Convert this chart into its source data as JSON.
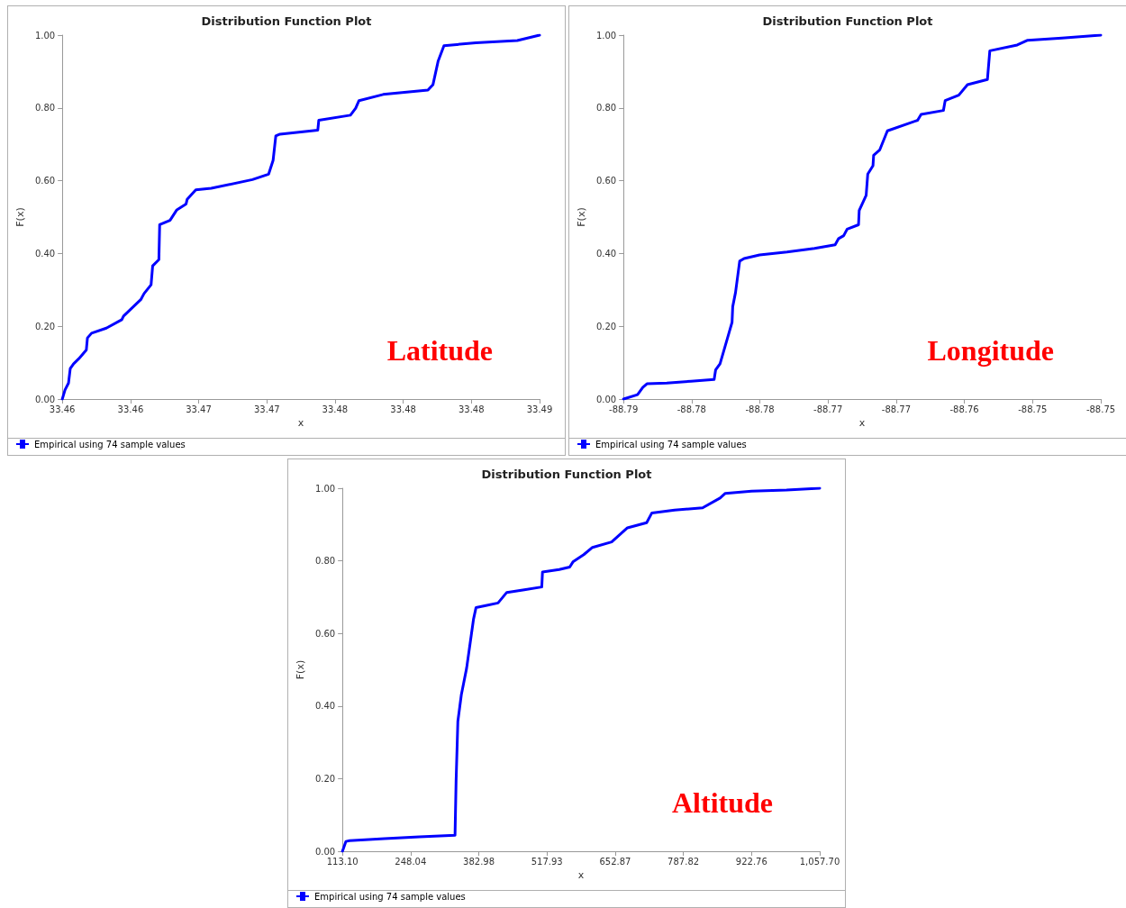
{
  "chart_data": [
    {
      "type": "line",
      "title": "Distribution Function Plot",
      "xlabel": "x",
      "ylabel": "F(x)",
      "annotations": [
        "Latitude"
      ],
      "legend": "bottom left",
      "xlim": [
        33.458,
        33.488
      ],
      "xticks": [
        {
          "value": 33.458,
          "label": "33.46"
        },
        {
          "value": 33.46229,
          "label": "33.46"
        },
        {
          "value": 33.46657,
          "label": "33.47"
        },
        {
          "value": 33.47086,
          "label": "33.47"
        },
        {
          "value": 33.47514,
          "label": "33.48"
        },
        {
          "value": 33.47943,
          "label": "33.48"
        },
        {
          "value": 33.48371,
          "label": "33.48"
        },
        {
          "value": 33.488,
          "label": "33.49"
        }
      ],
      "ylim": [
        0,
        1
      ],
      "yticks": [
        {
          "value": 0,
          "label": "0.00"
        },
        {
          "value": 0.2,
          "label": "0.20"
        },
        {
          "value": 0.4,
          "label": "0.40"
        },
        {
          "value": 0.6,
          "label": "0.60"
        },
        {
          "value": 0.8,
          "label": "0.80"
        },
        {
          "value": 1,
          "label": "1.00"
        }
      ],
      "series": [
        {
          "name": "Empirical using 74 sample values",
          "color": "#0000ff",
          "x": [
            33.458,
            33.45817,
            33.45839,
            33.4585,
            33.45871,
            33.45904,
            33.45951,
            33.45958,
            33.45984,
            33.46077,
            33.46174,
            33.46185,
            33.46293,
            33.46314,
            33.46358,
            33.46368,
            33.46407,
            33.46412,
            33.46477,
            33.4652,
            33.46578,
            33.46585,
            33.46639,
            33.46736,
            33.46995,
            33.47097,
            33.47125,
            33.47142,
            33.47168,
            33.47406,
            33.47412,
            33.47611,
            33.47644,
            33.47665,
            33.47817,
            33.48098,
            33.4813,
            33.48162,
            33.48199,
            33.484,
            33.4866,
            33.488
          ],
          "values": [
            0,
            0.025,
            0.044,
            0.084,
            0.097,
            0.111,
            0.135,
            0.168,
            0.181,
            0.195,
            0.218,
            0.228,
            0.273,
            0.29,
            0.314,
            0.366,
            0.383,
            0.479,
            0.491,
            0.52,
            0.536,
            0.549,
            0.575,
            0.579,
            0.603,
            0.618,
            0.656,
            0.723,
            0.728,
            0.739,
            0.766,
            0.78,
            0.799,
            0.82,
            0.837,
            0.849,
            0.864,
            0.928,
            0.971,
            0.979,
            0.985,
            1.0
          ]
        }
      ]
    },
    {
      "type": "line",
      "title": "Distribution Function Plot",
      "xlabel": "x",
      "ylabel": "F(x)",
      "annotations": [
        "Longitude"
      ],
      "legend": "bottom left",
      "xlim": [
        -88.7855,
        -88.7498
      ],
      "xticks": [
        {
          "value": -88.7855,
          "label": "-88.79"
        },
        {
          "value": -88.7804,
          "label": "-88.78"
        },
        {
          "value": -88.7753,
          "label": "-88.78"
        },
        {
          "value": -88.7702,
          "label": "-88.77"
        },
        {
          "value": -88.7651,
          "label": "-88.77"
        },
        {
          "value": -88.76,
          "label": "-88.76"
        },
        {
          "value": -88.7549,
          "label": "-88.75"
        },
        {
          "value": -88.7498,
          "label": "-88.75"
        }
      ],
      "ylim": [
        0,
        1
      ],
      "yticks": [
        {
          "value": 0,
          "label": "0.00"
        },
        {
          "value": 0.2,
          "label": "0.20"
        },
        {
          "value": 0.4,
          "label": "0.40"
        },
        {
          "value": 0.6,
          "label": "0.60"
        },
        {
          "value": 0.8,
          "label": "0.80"
        },
        {
          "value": 1,
          "label": "1.00"
        }
      ],
      "series": [
        {
          "name": "Empirical using 74 sample values",
          "color": "#0000ff",
          "x": [
            -88.7855,
            -88.78445,
            -88.78406,
            -88.78375,
            -88.78226,
            -88.78046,
            -88.77872,
            -88.77861,
            -88.77828,
            -88.77764,
            -88.77738,
            -88.77733,
            -88.77712,
            -88.77681,
            -88.77648,
            -88.77532,
            -88.77327,
            -88.77121,
            -88.76967,
            -88.76941,
            -88.76903,
            -88.76877,
            -88.76792,
            -88.76787,
            -88.76735,
            -88.76723,
            -88.76684,
            -88.76679,
            -88.76633,
            -88.76576,
            -88.7635,
            -88.76324,
            -88.76157,
            -88.76144,
            -88.76042,
            -88.75977,
            -88.75828,
            -88.7581,
            -88.75605,
            -88.75527,
            -88.7527,
            -88.7498
          ],
          "values": [
            0,
            0.012,
            0.032,
            0.042,
            0.044,
            0.049,
            0.054,
            0.08,
            0.097,
            0.178,
            0.211,
            0.254,
            0.293,
            0.379,
            0.386,
            0.396,
            0.404,
            0.414,
            0.424,
            0.441,
            0.449,
            0.467,
            0.479,
            0.518,
            0.56,
            0.618,
            0.641,
            0.67,
            0.685,
            0.737,
            0.766,
            0.782,
            0.793,
            0.82,
            0.835,
            0.864,
            0.878,
            0.957,
            0.973,
            0.986,
            0.992,
            1.0
          ]
        }
      ]
    },
    {
      "type": "line",
      "title": "Distribution Function Plot",
      "xlabel": "x",
      "ylabel": "F(x)",
      "annotations": [
        "Altitude"
      ],
      "legend": "bottom left",
      "xlim": [
        113.1,
        1057.7
      ],
      "xticks": [
        {
          "value": 113.1,
          "label": "113.10"
        },
        {
          "value": 248.04,
          "label": "248.04"
        },
        {
          "value": 382.98,
          "label": "382.98"
        },
        {
          "value": 517.93,
          "label": "517.93"
        },
        {
          "value": 652.87,
          "label": "652.87"
        },
        {
          "value": 787.82,
          "label": "787.82"
        },
        {
          "value": 922.76,
          "label": "922.76"
        },
        {
          "value": 1057.7,
          "label": "1,057.70"
        }
      ],
      "ylim": [
        0,
        1
      ],
      "yticks": [
        {
          "value": 0,
          "label": "0.00"
        },
        {
          "value": 0.2,
          "label": "0.20"
        },
        {
          "value": 0.4,
          "label": "0.40"
        },
        {
          "value": 0.6,
          "label": "0.60"
        },
        {
          "value": 0.8,
          "label": "0.80"
        },
        {
          "value": 1,
          "label": "1.00"
        }
      ],
      "series": [
        {
          "name": "Empirical using 74 sample values",
          "color": "#0000ff",
          "x": [
            113.1,
            120.0,
            126.9,
            196.1,
            265.3,
            335.9,
            338.0,
            341.5,
            348.4,
            358.8,
            365.7,
            372.6,
            377.4,
            396.8,
            421.0,
            438.3,
            473.0,
            507.6,
            509.0,
            542.1,
            562.9,
            569.8,
            590.6,
            607.9,
            645.9,
            677.1,
            715.2,
            725.5,
            770.5,
            825.9,
            860.5,
            870.8,
            922.8,
            992.0,
            1057.7
          ],
          "values": [
            0,
            0.027,
            0.029,
            0.035,
            0.04,
            0.044,
            0.193,
            0.358,
            0.431,
            0.504,
            0.572,
            0.64,
            0.671,
            0.677,
            0.684,
            0.713,
            0.72,
            0.728,
            0.769,
            0.776,
            0.783,
            0.798,
            0.817,
            0.837,
            0.852,
            0.891,
            0.905,
            0.932,
            0.94,
            0.946,
            0.973,
            0.986,
            0.992,
            0.995,
            1.0
          ]
        }
      ]
    }
  ]
}
